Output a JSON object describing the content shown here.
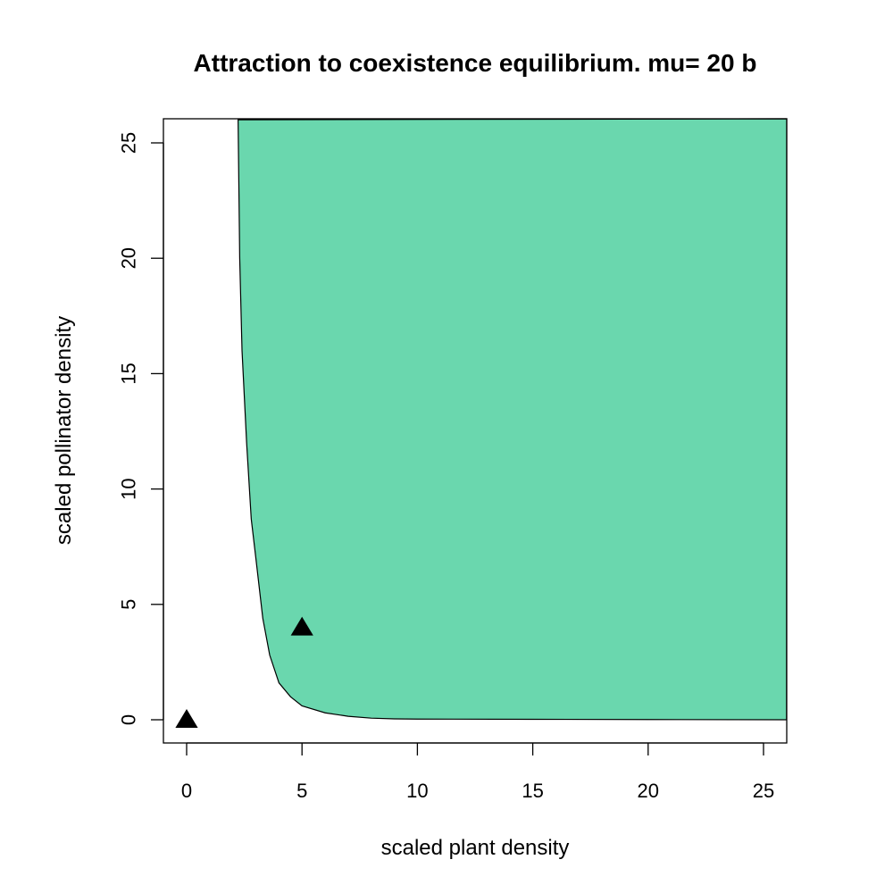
{
  "chart_data": {
    "type": "area",
    "title": "Attraction to coexistence equilibrium. mu= 20 b",
    "xlabel": "scaled plant density",
    "ylabel": "scaled pollinator density",
    "xlim": [
      -1,
      26
    ],
    "ylim": [
      -1,
      26
    ],
    "x_ticks": [
      0,
      5,
      10,
      15,
      20,
      25
    ],
    "y_ticks": [
      0,
      5,
      10,
      15,
      20,
      25
    ],
    "grid": false,
    "colors": {
      "region": "#6ad7ae",
      "axes": "#000000",
      "points": "#000000"
    },
    "region_boundary": [
      {
        "x": 2.23,
        "y": 26
      },
      {
        "x": 2.3,
        "y": 20
      },
      {
        "x": 2.4,
        "y": 16
      },
      {
        "x": 2.6,
        "y": 12
      },
      {
        "x": 2.8,
        "y": 8.7
      },
      {
        "x": 3.0,
        "y": 7.0
      },
      {
        "x": 3.3,
        "y": 4.4
      },
      {
        "x": 3.6,
        "y": 2.8
      },
      {
        "x": 4.0,
        "y": 1.6
      },
      {
        "x": 4.5,
        "y": 1.0
      },
      {
        "x": 5.0,
        "y": 0.6
      },
      {
        "x": 6.0,
        "y": 0.3
      },
      {
        "x": 7.0,
        "y": 0.15
      },
      {
        "x": 8.0,
        "y": 0.07
      },
      {
        "x": 9.0,
        "y": 0.04
      },
      {
        "x": 10.0,
        "y": 0.03
      },
      {
        "x": 15.0,
        "y": 0.02
      },
      {
        "x": 20.0,
        "y": 0.01
      },
      {
        "x": 26.0,
        "y": 0.0
      }
    ],
    "points": [
      {
        "x": 0,
        "y": 0,
        "shape": "triangle"
      },
      {
        "x": 5,
        "y": 4,
        "shape": "triangle"
      }
    ]
  }
}
